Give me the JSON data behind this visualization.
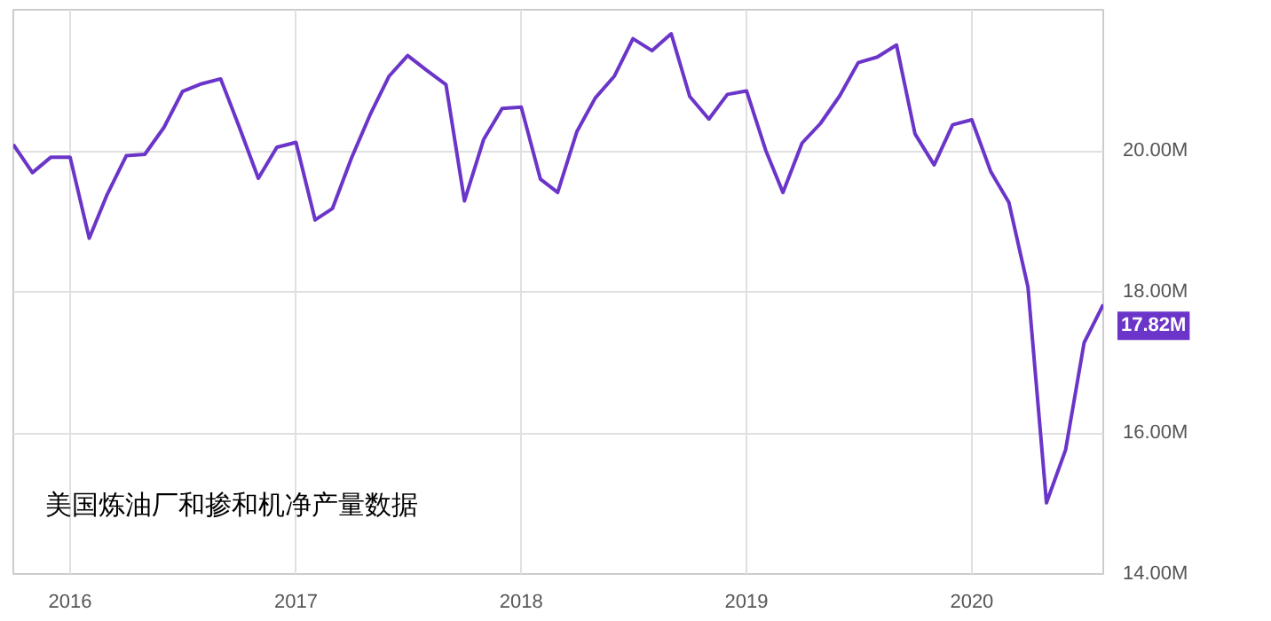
{
  "chart_data": {
    "type": "line",
    "title": "美国炼油厂和掺和机净产量数据",
    "x": [
      "2015-10",
      "2015-11",
      "2015-12",
      "2016-01",
      "2016-02",
      "2016-03",
      "2016-04",
      "2016-05",
      "2016-06",
      "2016-07",
      "2016-08",
      "2016-09",
      "2016-10",
      "2016-11",
      "2016-12",
      "2017-01",
      "2017-02",
      "2017-03",
      "2017-04",
      "2017-05",
      "2017-06",
      "2017-07",
      "2017-08",
      "2017-09",
      "2017-10",
      "2017-11",
      "2017-12",
      "2018-01",
      "2018-02",
      "2018-03",
      "2018-04",
      "2018-05",
      "2018-06",
      "2018-07",
      "2018-08",
      "2018-09",
      "2018-10",
      "2018-11",
      "2018-12",
      "2019-01",
      "2019-02",
      "2019-03",
      "2019-04",
      "2019-05",
      "2019-06",
      "2019-07",
      "2019-08",
      "2019-09",
      "2019-10",
      "2019-11",
      "2019-12",
      "2020-01",
      "2020-02",
      "2020-03",
      "2020-04",
      "2020-05",
      "2020-06",
      "2020-07",
      "2020-08"
    ],
    "series": [
      {
        "color": "#6a35c8",
        "values": [
          20.09,
          19.69,
          19.91,
          19.91,
          18.76,
          19.38,
          19.93,
          19.95,
          20.33,
          20.84,
          20.95,
          21.02,
          20.34,
          19.61,
          20.05,
          20.12,
          19.02,
          19.18,
          19.9,
          20.51,
          21.06,
          21.35,
          21.14,
          20.94,
          19.29,
          20.16,
          20.6,
          20.62,
          19.6,
          19.41,
          20.27,
          20.75,
          21.06,
          21.59,
          21.42,
          21.66,
          20.77,
          20.45,
          20.8,
          20.85,
          20.01,
          19.41,
          20.11,
          20.39,
          20.78,
          21.25,
          21.33,
          21.5,
          20.24,
          19.8,
          20.37,
          20.44,
          19.7,
          19.27,
          18.07,
          15.01,
          15.76,
          17.28,
          17.82
        ],
        "value_labels": [
          null,
          null,
          null,
          null,
          null,
          null,
          null,
          null,
          null,
          null,
          null,
          null,
          null,
          null,
          null,
          null,
          null,
          null,
          null,
          null,
          null,
          null,
          null,
          null,
          null,
          null,
          null,
          null,
          null,
          null,
          null,
          null,
          null,
          null,
          null,
          null,
          null,
          null,
          null,
          null,
          null,
          null,
          null,
          null,
          null,
          null,
          null,
          null,
          null,
          null,
          null,
          null,
          null,
          null,
          null,
          null,
          null,
          null,
          "17.82M"
        ]
      }
    ],
    "xlim": [
      "2015-10",
      "2020-08"
    ],
    "xticks": [
      {
        "value": "2016-01",
        "label": "2016"
      },
      {
        "value": "2017-01",
        "label": "2017"
      },
      {
        "value": "2018-01",
        "label": "2018"
      },
      {
        "value": "2019-01",
        "label": "2019"
      },
      {
        "value": "2020-01",
        "label": "2020"
      }
    ],
    "ylim": [
      14,
      22
    ],
    "yticks": [
      {
        "value": 14,
        "label": "14.00M"
      },
      {
        "value": 16,
        "label": "16.00M"
      },
      {
        "value": 18,
        "label": "18.00M"
      },
      {
        "value": 20,
        "label": "20.00M"
      }
    ],
    "grid": true,
    "marker": "none",
    "line_style": "solid"
  }
}
